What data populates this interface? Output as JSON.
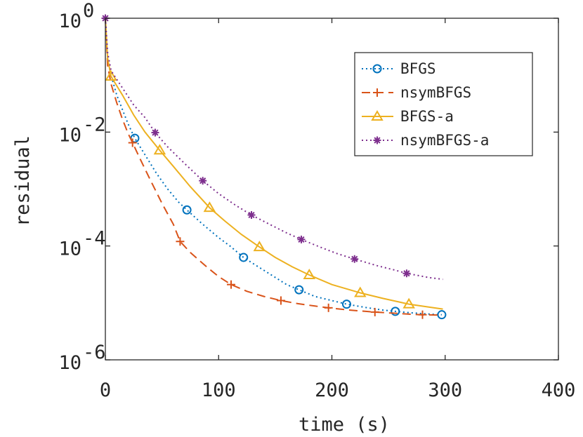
{
  "chart_data": {
    "type": "line",
    "xlabel": "time (s)",
    "ylabel": "residual",
    "xlim": [
      0,
      400
    ],
    "ylim": [
      1e-06,
      1
    ],
    "yscale": "log",
    "xticks": [
      0,
      100,
      200,
      300,
      400
    ],
    "xtick_labels": [
      "0",
      "100",
      "200",
      "300",
      "400"
    ],
    "yticks": [
      1,
      0.01,
      0.0001,
      1e-06
    ],
    "ytick_labels": [
      {
        "base": "10",
        "exp": "0"
      },
      {
        "base": "10",
        "exp": "-2"
      },
      {
        "base": "10",
        "exp": "-4"
      },
      {
        "base": "10",
        "exp": "-6"
      }
    ],
    "grid": false,
    "legend_position": "top-right",
    "series": [
      {
        "name": "BFGS",
        "color": "#0072BD",
        "line_style": "dotted",
        "marker": "circle",
        "x": [
          0,
          2,
          5,
          10,
          15,
          20,
          26,
          35,
          45,
          55,
          65,
          72,
          85,
          100,
          110,
          122,
          135,
          150,
          160,
          171,
          185,
          200,
          213,
          230,
          245,
          256,
          270,
          285,
          297
        ],
        "y": [
          1,
          0.2,
          0.1,
          0.045,
          0.025,
          0.014,
          0.0078,
          0.004,
          0.0019,
          0.001,
          0.00058,
          0.00043,
          0.00025,
          0.00014,
          0.0001,
          6.3e-05,
          4.3e-05,
          2.8e-05,
          2.1e-05,
          1.7e-05,
          1.3e-05,
          1.1e-05,
          9.5e-06,
          8.3e-06,
          7.5e-06,
          7.1e-06,
          6.7e-06,
          6.4e-06,
          6.2e-06
        ],
        "marker_x": [
          26,
          72,
          122,
          171,
          213,
          256,
          297
        ],
        "marker_y": [
          0.0078,
          0.00043,
          6.3e-05,
          1.7e-05,
          9.5e-06,
          7.1e-06,
          6.2e-06
        ]
      },
      {
        "name": "nsymBFGS",
        "color": "#D95319",
        "line_style": "dashed",
        "marker": "plus",
        "x": [
          0,
          2,
          5,
          10,
          15,
          20,
          24,
          30,
          40,
          50,
          60,
          66,
          75,
          90,
          100,
          111,
          125,
          140,
          155,
          170,
          185,
          197,
          215,
          230,
          238,
          255,
          270,
          280,
          297
        ],
        "y": [
          1,
          0.15,
          0.07,
          0.033,
          0.017,
          0.0095,
          0.0065,
          0.0036,
          0.0014,
          0.00056,
          0.00024,
          0.00012,
          7.7e-05,
          4.2e-05,
          2.9e-05,
          2.1e-05,
          1.6e-05,
          1.3e-05,
          1.1e-05,
          9.7e-06,
          8.8e-06,
          8.2e-06,
          7.5e-06,
          7.1e-06,
          6.9e-06,
          6.6e-06,
          6.3e-06,
          6.2e-06,
          6.1e-06
        ],
        "marker_x": [
          24,
          66,
          111,
          155,
          197,
          238,
          280
        ],
        "marker_y": [
          0.0065,
          0.00012,
          2.1e-05,
          1.1e-05,
          8.2e-06,
          6.9e-06,
          6.2e-06
        ]
      },
      {
        "name": "BFGS-a",
        "color": "#EDB120",
        "line_style": "solid",
        "marker": "triangle",
        "x": [
          0,
          2,
          5,
          15,
          25,
          35,
          48,
          60,
          75,
          92,
          105,
          120,
          136,
          150,
          165,
          180,
          200,
          225,
          245,
          268,
          285,
          298
        ],
        "y": [
          1,
          0.2,
          0.095,
          0.045,
          0.02,
          0.01,
          0.0048,
          0.0025,
          0.0011,
          0.00047,
          0.00028,
          0.00016,
          9.6e-05,
          6.3e-05,
          4.3e-05,
          3.1e-05,
          2.1e-05,
          1.5e-05,
          1.2e-05,
          9.5e-06,
          8.5e-06,
          7.8e-06
        ],
        "marker_x": [
          5,
          48,
          92,
          136,
          180,
          225,
          268
        ],
        "marker_y": [
          0.095,
          0.0048,
          0.00047,
          9.6e-05,
          3.1e-05,
          1.5e-05,
          9.5e-06
        ]
      },
      {
        "name": "nsymBFGS-a",
        "color": "#7E2F8E",
        "line_style": "dotted",
        "marker": "asterisk",
        "x": [
          0,
          2,
          5,
          15,
          25,
          35,
          44,
          55,
          70,
          86,
          100,
          115,
          129,
          145,
          160,
          173,
          190,
          205,
          220,
          240,
          255,
          266,
          285,
          298
        ],
        "y": [
          1,
          0.25,
          0.12,
          0.06,
          0.03,
          0.018,
          0.0098,
          0.0055,
          0.0028,
          0.0014,
          0.00083,
          0.00052,
          0.00035,
          0.00024,
          0.00017,
          0.00013,
          9.5e-05,
          7.3e-05,
          5.9e-05,
          4.5e-05,
          3.8e-05,
          3.3e-05,
          2.8e-05,
          2.6e-05
        ],
        "marker_x": [
          0,
          44,
          86,
          129,
          173,
          220,
          266
        ],
        "marker_y": [
          1,
          0.0098,
          0.0014,
          0.00035,
          0.00013,
          5.9e-05,
          3.3e-05
        ]
      }
    ]
  }
}
